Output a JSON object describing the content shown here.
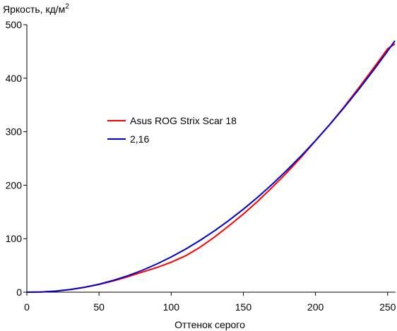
{
  "chart_data": {
    "type": "line",
    "ylabel": "Яркость, кд/м",
    "ylabel_superscript": "2",
    "xlabel": "Оттенок серого",
    "xlim": [
      0,
      255
    ],
    "ylim": [
      0,
      500
    ],
    "x_ticks": [
      0,
      50,
      100,
      150,
      200,
      250
    ],
    "y_ticks": [
      0,
      100,
      200,
      300,
      400,
      500
    ],
    "grid": false,
    "legend_position": "center-left",
    "series": [
      {
        "name": "Asus ROG Strix Scar 18",
        "color": "#ff0000",
        "x": [
          0,
          10,
          20,
          30,
          40,
          50,
          60,
          70,
          80,
          90,
          100,
          110,
          120,
          130,
          140,
          150,
          160,
          170,
          180,
          190,
          200,
          210,
          220,
          230,
          240,
          250,
          255
        ],
        "y": [
          0,
          0.5,
          2,
          5,
          9,
          14.5,
          21,
          29,
          37.5,
          46,
          56,
          68,
          84,
          103,
          124,
          146,
          170,
          196,
          223,
          252,
          283,
          314,
          347,
          382,
          418,
          455,
          464
        ]
      },
      {
        "name": "2,16",
        "color": "#0000cc",
        "x": [
          0,
          10,
          20,
          30,
          40,
          50,
          60,
          70,
          80,
          90,
          100,
          110,
          120,
          130,
          140,
          150,
          160,
          170,
          180,
          190,
          200,
          210,
          220,
          230,
          240,
          250,
          255
        ],
        "y": [
          0,
          0.4,
          2.0,
          4.9,
          9.2,
          14.9,
          22.1,
          30.7,
          40.9,
          52.6,
          65.8,
          80.5,
          96.8,
          114.7,
          134.1,
          155.1,
          177.6,
          201.7,
          227.4,
          254.6,
          283.4,
          313.7,
          345.6,
          379.1,
          414.2,
          450.8,
          469.8
        ]
      }
    ]
  }
}
